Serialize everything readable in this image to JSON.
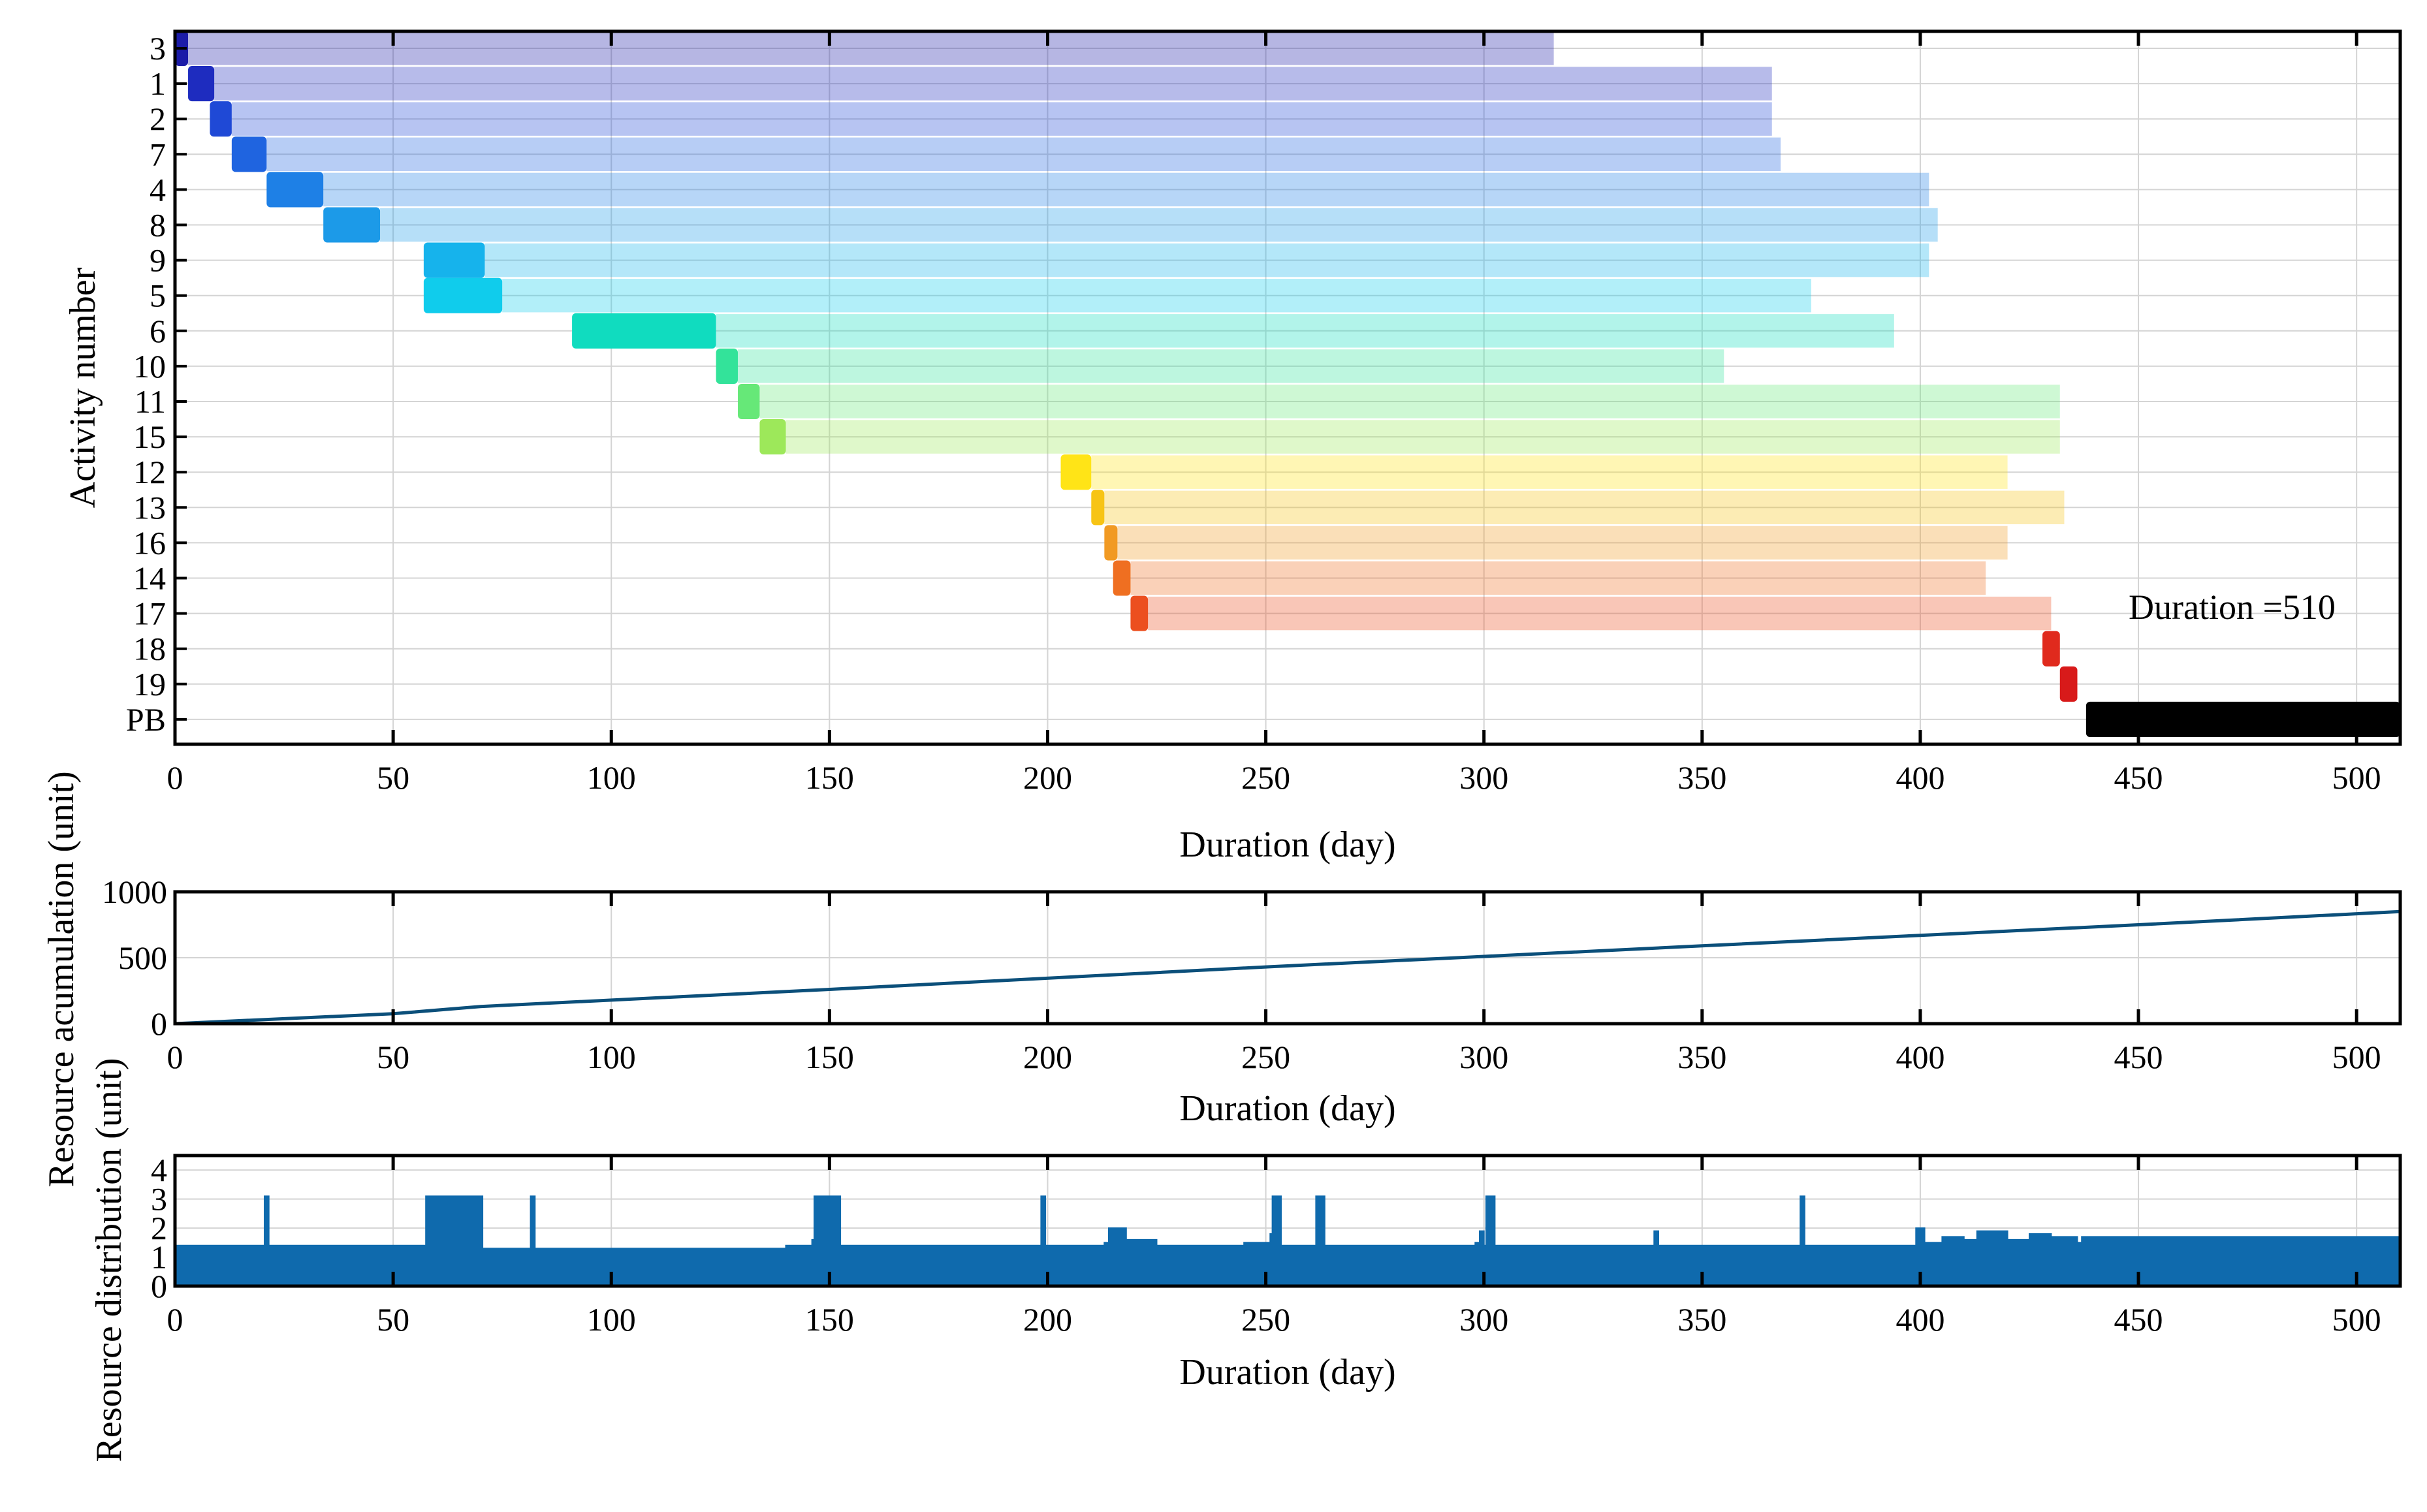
{
  "chart_data": [
    {
      "type": "gantt",
      "title": "",
      "xlabel": "Duration (day)",
      "ylabel": "Activity number",
      "xlim": [
        0,
        510
      ],
      "xticks": [
        0,
        50,
        100,
        150,
        200,
        250,
        300,
        350,
        400,
        450,
        500
      ],
      "grid": true,
      "annotation": "Duration =510",
      "activities": [
        {
          "label": "3",
          "color": "#1c1ca8",
          "start": 0,
          "end": 3,
          "float_end": 316
        },
        {
          "label": "1",
          "color": "#1e2cbf",
          "start": 3,
          "end": 9,
          "float_end": 366
        },
        {
          "label": "2",
          "color": "#1f49d6",
          "start": 8,
          "end": 13,
          "float_end": 366
        },
        {
          "label": "7",
          "color": "#1f64e0",
          "start": 13,
          "end": 21,
          "float_end": 368
        },
        {
          "label": "4",
          "color": "#1e80e6",
          "start": 21,
          "end": 34,
          "float_end": 402
        },
        {
          "label": "8",
          "color": "#1c9ae8",
          "start": 34,
          "end": 47,
          "float_end": 404
        },
        {
          "label": "9",
          "color": "#16b3ec",
          "start": 57,
          "end": 71,
          "float_end": 402
        },
        {
          "label": "5",
          "color": "#10ccec",
          "start": 57,
          "end": 75,
          "float_end": 375
        },
        {
          "label": "6",
          "color": "#10dcbf",
          "start": 91,
          "end": 124,
          "float_end": 394
        },
        {
          "label": "10",
          "color": "#33e39a",
          "start": 124,
          "end": 129,
          "float_end": 355
        },
        {
          "label": "11",
          "color": "#66e878",
          "start": 129,
          "end": 134,
          "float_end": 432
        },
        {
          "label": "15",
          "color": "#9de85a",
          "start": 134,
          "end": 140,
          "float_end": 432
        },
        {
          "label": "12",
          "color": "#ffe417",
          "start": 203,
          "end": 210,
          "float_end": 420
        },
        {
          "label": "13",
          "color": "#f7c415",
          "start": 210,
          "end": 213,
          "float_end": 433
        },
        {
          "label": "16",
          "color": "#f19a23",
          "start": 213,
          "end": 216,
          "float_end": 420
        },
        {
          "label": "14",
          "color": "#ef6f21",
          "start": 215,
          "end": 219,
          "float_end": 415
        },
        {
          "label": "17",
          "color": "#ec4f1f",
          "start": 219,
          "end": 223,
          "float_end": 430
        },
        {
          "label": "18",
          "color": "#e02a1d",
          "start": 428,
          "end": 432,
          "float_end": 432
        },
        {
          "label": "19",
          "color": "#d81a1a",
          "start": 432,
          "end": 436,
          "float_end": 436
        },
        {
          "label": "PB",
          "color": "#000000",
          "start": 438,
          "end": 510,
          "float_end": 510
        }
      ]
    },
    {
      "type": "line",
      "title": "",
      "xlabel": "Duration (day)",
      "ylabel": "Resource acumulation (unit)",
      "xlim": [
        0,
        510
      ],
      "ylim": [
        0,
        1000
      ],
      "xticks": [
        0,
        50,
        100,
        150,
        200,
        250,
        300,
        350,
        400,
        450,
        500
      ],
      "yticks": [
        0,
        500,
        1000
      ],
      "series": [
        {
          "name": "Resource accumulation",
          "color": "#0b4f7a",
          "x": [
            0,
            50,
            70,
            150,
            250,
            300,
            350,
            400,
            450,
            510
          ],
          "y": [
            0,
            75,
            130,
            260,
            430,
            510,
            590,
            670,
            750,
            850
          ]
        }
      ]
    },
    {
      "type": "area",
      "title": "",
      "xlabel": "Duration (day)",
      "ylabel": "Resource distribution (unit)",
      "xlim": [
        0,
        510
      ],
      "ylim": [
        0,
        4.5
      ],
      "xticks": [
        0,
        50,
        100,
        150,
        200,
        250,
        300,
        350,
        400,
        450,
        500
      ],
      "yticks": [
        0,
        1,
        2,
        3,
        4
      ],
      "series": [
        {
          "name": "Resource distribution",
          "color": "#0f6aad",
          "x": [
            0,
            20,
            20.5,
            21,
            21.5,
            57,
            57.5,
            70,
            70.5,
            81,
            81.5,
            82,
            82.5,
            140,
            146,
            146.5,
            152,
            152.5,
            198,
            198.5,
            199,
            199.5,
            213,
            214,
            218,
            225,
            245,
            251,
            251.5,
            253,
            253.5,
            261,
            261.5,
            263,
            263.5,
            298,
            299,
            300,
            300.5,
            302,
            302.5,
            338,
            339,
            340,
            372,
            372.5,
            373,
            373.5,
            398,
            399,
            401,
            405,
            410,
            413,
            420,
            425,
            430,
            436,
            437,
            438,
            508,
            510
          ],
          "y": [
            1.4,
            1.4,
            3.1,
            3.1,
            1.4,
            1.4,
            3.1,
            3.1,
            1.3,
            1.3,
            3.1,
            3.1,
            1.3,
            1.4,
            1.6,
            3.1,
            3.1,
            1.4,
            1.4,
            3.1,
            3.1,
            1.4,
            1.5,
            2.0,
            1.6,
            1.4,
            1.5,
            1.8,
            3.1,
            3.1,
            1.4,
            1.4,
            3.1,
            3.1,
            1.4,
            1.5,
            1.9,
            1.4,
            3.1,
            3.1,
            1.4,
            1.4,
            1.9,
            1.4,
            1.4,
            3.1,
            3.1,
            1.4,
            1.4,
            2.0,
            1.5,
            1.7,
            1.6,
            1.9,
            1.6,
            1.8,
            1.7,
            1.5,
            1.7,
            1.7,
            1.7,
            1.7
          ]
        }
      ]
    }
  ]
}
